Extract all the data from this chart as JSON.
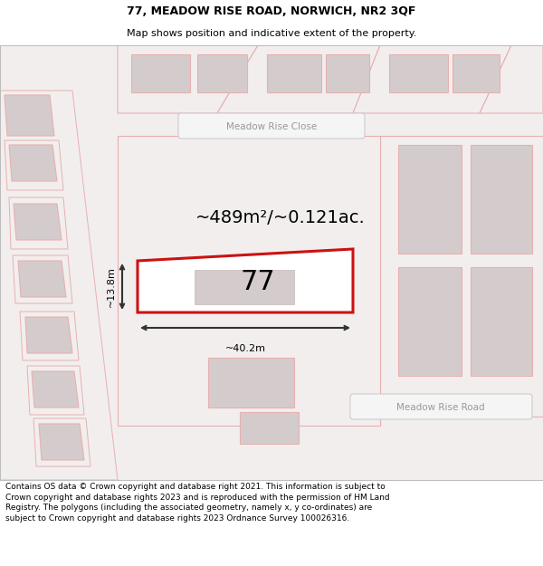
{
  "title_line1": "77, MEADOW RISE ROAD, NORWICH, NR2 3QF",
  "title_line2": "Map shows position and indicative extent of the property.",
  "footer_text": "Contains OS data © Crown copyright and database right 2021. This information is subject to Crown copyright and database rights 2023 and is reproduced with the permission of HM Land Registry. The polygons (including the associated geometry, namely x, y co-ordinates) are subject to Crown copyright and database rights 2023 Ordnance Survey 100026316.",
  "road_label_1": "Meadow Rise Close",
  "road_label_2": "Meadow Rise Road",
  "property_number": "77",
  "area_label": "~489m²/~0.121ac.",
  "dim_width": "~40.2m",
  "dim_height": "~13.8m",
  "map_bg": "#f2eeee",
  "building_fill": "#d4cccc",
  "building_edge": "#c8b8b8",
  "plot_edge_light": "#e8b0b0",
  "prop_red": "#cc1111",
  "road_pill_fill": "#f5f5f5",
  "road_pill_edge": "#cccccc",
  "road_text_color": "#999999",
  "dim_line_color": "#333333",
  "title_fs": 9,
  "subtitle_fs": 8,
  "footer_fs": 6.5,
  "area_fs": 14,
  "prop_num_fs": 22,
  "dim_fs": 8
}
